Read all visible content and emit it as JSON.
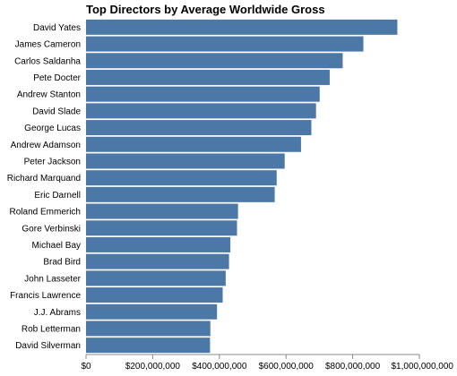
{
  "chart_data": {
    "type": "bar",
    "orientation": "horizontal",
    "title": "Top Directors by Average Worldwide Gross",
    "xlabel": "",
    "ylabel": "",
    "xlim": [
      0,
      1000000000
    ],
    "x_ticks": [
      0,
      200000000,
      400000000,
      600000000,
      800000000,
      1000000000
    ],
    "x_tick_labels": [
      "$0",
      "$200,000,000",
      "$400,000,000",
      "$600,000,000",
      "$800,000,000",
      "$1,000,000,000"
    ],
    "grid": false,
    "color": "#4c78a8",
    "categories": [
      "David Yates",
      "James Cameron",
      "Carlos Saldanha",
      "Pete Docter",
      "Andrew Stanton",
      "David Slade",
      "George Lucas",
      "Andrew Adamson",
      "Peter Jackson",
      "Richard Marquand",
      "Eric Darnell",
      "Roland Emmerich",
      "Gore Verbinski",
      "Michael Bay",
      "Brad Bird",
      "John Lasseter",
      "Francis Lawrence",
      "J.J. Abrams",
      "Rob Letterman",
      "David Silverman"
    ],
    "values": [
      934000000,
      832000000,
      770000000,
      731000000,
      701000000,
      690000000,
      676000000,
      645000000,
      596000000,
      572000000,
      566000000,
      456000000,
      453000000,
      433000000,
      429000000,
      419000000,
      410000000,
      393000000,
      373000000,
      372000000
    ]
  }
}
